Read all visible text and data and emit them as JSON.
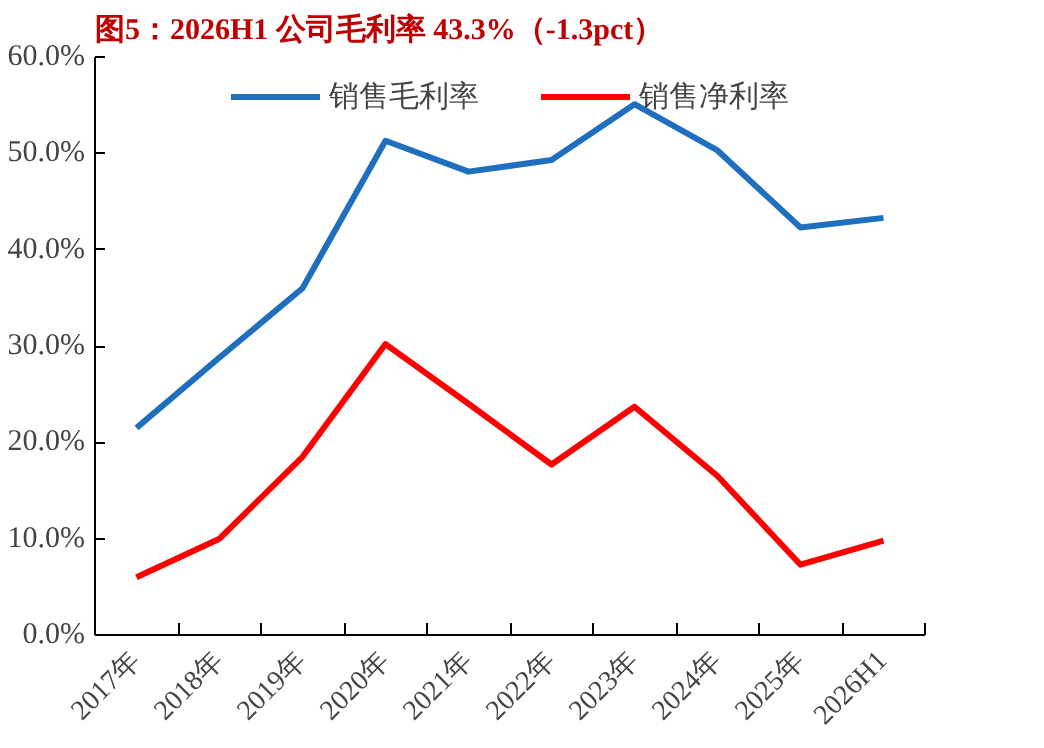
{
  "chart_data": {
    "type": "line",
    "title": "图5：2026H1 公司毛利率 43.3%（-1.3pct）",
    "categories": [
      "2017年",
      "2018年",
      "2019年",
      "2020年",
      "2021年",
      "2022年",
      "2023年",
      "2024年",
      "2025年",
      "2026H1"
    ],
    "series": [
      {
        "name": "销售毛利率",
        "color": "#1f6fbf",
        "values": [
          21.5,
          28.8,
          36.0,
          51.3,
          48.1,
          49.3,
          55.1,
          50.3,
          42.3,
          43.3
        ]
      },
      {
        "name": "销售净利率",
        "color": "#ff0000",
        "values": [
          6.0,
          10.0,
          18.5,
          30.2,
          24.0,
          17.7,
          23.7,
          16.5,
          7.3,
          9.8
        ]
      }
    ],
    "ylim": [
      0,
      60
    ],
    "yticks": [
      {
        "value": 0,
        "label": "0.0%"
      },
      {
        "value": 10,
        "label": "10.0%"
      },
      {
        "value": 20,
        "label": "20.0%"
      },
      {
        "value": 30,
        "label": "30.0%"
      },
      {
        "value": 40,
        "label": "40.0%"
      },
      {
        "value": 50,
        "label": "50.0%"
      },
      {
        "value": 60,
        "label": "60.0%"
      }
    ],
    "grid": false,
    "legend": "top",
    "marker": "none",
    "line_style": "solid"
  }
}
